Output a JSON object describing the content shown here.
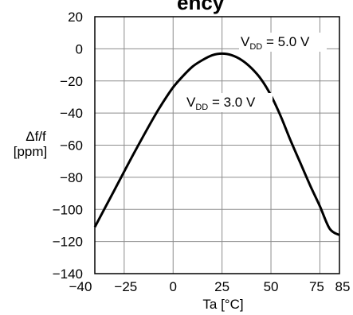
{
  "chart_data": {
    "type": "line",
    "title_fragment": "ency",
    "xlabel": "Ta [°C]",
    "ylabel_line1": "Δf/f",
    "ylabel_line2": "[ppm]",
    "xlim": [
      -40,
      85
    ],
    "ylim": [
      -140,
      20
    ],
    "x_ticks": [
      -40,
      -25,
      0,
      25,
      50,
      75,
      85
    ],
    "x_tick_labels": [
      "−40",
      "−25",
      "0",
      "25",
      "50",
      "75",
      "85"
    ],
    "x_grid": [
      -40,
      -25,
      0,
      25,
      50,
      75,
      85
    ],
    "y_ticks": [
      20,
      0,
      -20,
      -40,
      -60,
      -80,
      -100,
      -120,
      -140
    ],
    "y_tick_labels": [
      "20",
      "0",
      "−20",
      "−40",
      "−60",
      "−80",
      "−100",
      "−120",
      "−140"
    ],
    "grid": true,
    "series": [
      {
        "x": [
          -40,
          -30,
          -20,
          -10,
          -5,
          0,
          5,
          10,
          15,
          20,
          25,
          30,
          35,
          40,
          45,
          50,
          55,
          60,
          65,
          70,
          75,
          80,
          85
        ],
        "y": [
          -111,
          -88,
          -65,
          -43,
          -33,
          -24,
          -17,
          -11,
          -7,
          -4,
          -3,
          -4,
          -7,
          -12,
          -19,
          -29,
          -42,
          -57,
          -71,
          -85,
          -98,
          -112,
          -116
        ]
      }
    ],
    "annotations": [
      {
        "main": "V",
        "sub": "DD",
        "rest": " = 5.0 V"
      },
      {
        "main": "V",
        "sub": "DD",
        "rest": " = 3.0 V"
      }
    ]
  }
}
